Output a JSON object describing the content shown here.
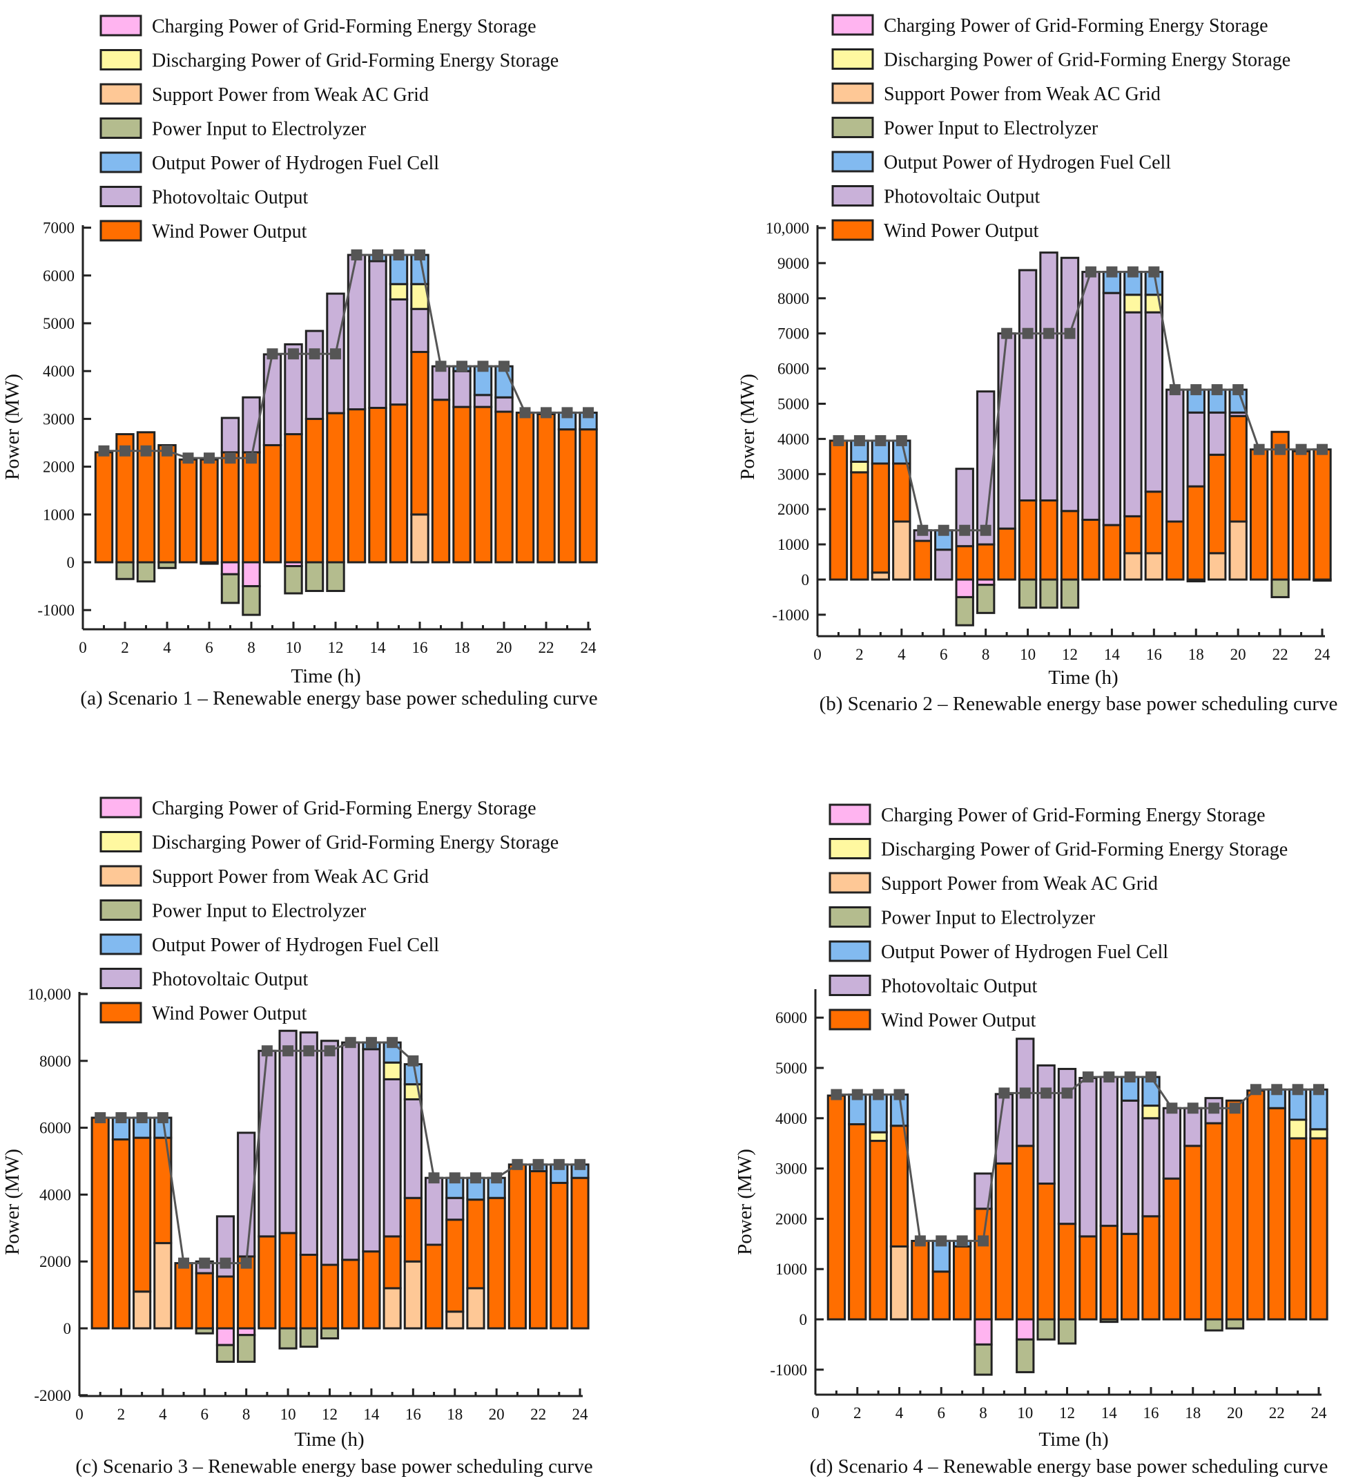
{
  "legend": [
    {
      "key": "charge",
      "label": "Charging Power of Grid-Forming Energy Storage",
      "color": "#FFB4F0"
    },
    {
      "key": "discharge",
      "label": "Discharging Power of Grid-Forming Energy Storage",
      "color": "#FFF8A0"
    },
    {
      "key": "support",
      "label": "Support Power from Weak AC Grid",
      "color": "#FEC896"
    },
    {
      "key": "electrolyzer",
      "label": "Power Input to Electrolyzer",
      "color": "#B4BC8E"
    },
    {
      "key": "fuelcell",
      "label": "Output Power of Hydrogen Fuel Cell",
      "color": "#82BAF0"
    },
    {
      "key": "pv",
      "label": "Photovoltaic Output",
      "color": "#C9B1D9"
    },
    {
      "key": "wind",
      "label": "Wind Power Output",
      "color": "#FF6E00"
    }
  ],
  "line_color": "#555555",
  "chart_data": [
    {
      "type": "bar",
      "stacked": true,
      "title": "(a) Scenario 1 – Renewable energy base power scheduling curve",
      "xlabel": "Time (h)",
      "ylabel": "Power (MW)",
      "xlim": [
        0,
        24
      ],
      "ylim": [
        -1400,
        7000
      ],
      "xticks": [
        "0",
        "2",
        "4",
        "6",
        "8",
        "10",
        "12",
        "14",
        "16",
        "18",
        "20",
        "22",
        "24"
      ],
      "yticks": [
        {
          "v": -1000,
          "label": "-1000"
        },
        {
          "v": 0,
          "label": "0"
        },
        {
          "v": 1000,
          "label": "1000"
        },
        {
          "v": 2000,
          "label": "2000"
        },
        {
          "v": 3000,
          "label": "3000"
        },
        {
          "v": 4000,
          "label": "4000"
        },
        {
          "v": 5000,
          "label": "5000"
        },
        {
          "v": 6000,
          "label": "6000"
        },
        {
          "v": 7000,
          "label": "7000"
        }
      ],
      "hours": [
        1,
        2,
        3,
        4,
        5,
        6,
        7,
        8,
        9,
        10,
        11,
        12,
        13,
        14,
        15,
        16,
        17,
        18,
        19,
        20,
        21,
        22,
        23,
        24
      ],
      "series": {
        "support": [
          0,
          0,
          0,
          0,
          0,
          0,
          0,
          0,
          0,
          0,
          0,
          0,
          0,
          0,
          0,
          1000,
          0,
          0,
          0,
          0,
          0,
          0,
          0,
          0
        ],
        "wind": [
          2300,
          2680,
          2720,
          2450,
          2150,
          2150,
          2300,
          2300,
          2450,
          2680,
          3000,
          3120,
          3200,
          3230,
          3300,
          3400,
          3400,
          3250,
          3250,
          3150,
          3130,
          3100,
          2780,
          2780
        ],
        "pv": [
          0,
          0,
          0,
          0,
          0,
          0,
          720,
          1150,
          1900,
          1880,
          1840,
          2500,
          3230,
          3070,
          2200,
          900,
          700,
          750,
          250,
          300,
          0,
          0,
          0,
          0
        ],
        "discharge": [
          0,
          0,
          0,
          0,
          0,
          0,
          0,
          0,
          0,
          0,
          0,
          0,
          0,
          0,
          320,
          520,
          0,
          0,
          0,
          0,
          0,
          0,
          0,
          0
        ],
        "fuelcell": [
          0,
          0,
          0,
          0,
          0,
          0,
          0,
          0,
          0,
          0,
          0,
          0,
          0,
          130,
          610,
          610,
          0,
          100,
          600,
          650,
          0,
          30,
          350,
          350
        ],
        "charge": [
          0,
          0,
          0,
          0,
          0,
          0,
          -250,
          -500,
          0,
          -80,
          0,
          0,
          0,
          0,
          0,
          0,
          0,
          0,
          0,
          0,
          0,
          0,
          0,
          0
        ],
        "electrolyzer": [
          0,
          -350,
          -400,
          -120,
          0,
          -30,
          -600,
          -600,
          0,
          -570,
          -600,
          -600,
          0,
          0,
          0,
          0,
          0,
          0,
          0,
          0,
          0,
          0,
          0,
          0
        ]
      },
      "load": [
        2330,
        2330,
        2330,
        2330,
        2180,
        2180,
        2180,
        2180,
        4360,
        4360,
        4360,
        4360,
        6430,
        6430,
        6430,
        6430,
        4100,
        4100,
        4100,
        4100,
        3130,
        3130,
        3130,
        3130
      ]
    },
    {
      "type": "bar",
      "stacked": true,
      "title": "(b) Scenario 2 – Renewable energy base power scheduling curve",
      "xlabel": "Time (h)",
      "ylabel": "Power (MW)",
      "xlim": [
        0,
        24
      ],
      "ylim": [
        -1500,
        10000
      ],
      "xticks": [
        "0",
        "2",
        "4",
        "6",
        "8",
        "10",
        "12",
        "14",
        "16",
        "18",
        "20",
        "22",
        "24"
      ],
      "yticks": [
        {
          "v": -1000,
          "label": "-1000"
        },
        {
          "v": 0,
          "label": "0"
        },
        {
          "v": 1000,
          "label": "1000"
        },
        {
          "v": 2000,
          "label": "2000"
        },
        {
          "v": 3000,
          "label": "3000"
        },
        {
          "v": 4000,
          "label": "4000"
        },
        {
          "v": 5000,
          "label": "5000"
        },
        {
          "v": 6000,
          "label": "6000"
        },
        {
          "v": 7000,
          "label": "7000"
        },
        {
          "v": 8000,
          "label": "8000"
        },
        {
          "v": 9000,
          "label": "9000"
        },
        {
          "v": 10000,
          "label": "10,000"
        }
      ],
      "hours": [
        1,
        2,
        3,
        4,
        5,
        6,
        7,
        8,
        9,
        10,
        11,
        12,
        13,
        14,
        15,
        16,
        17,
        18,
        19,
        20,
        21,
        22,
        23,
        24
      ],
      "series": {
        "support": [
          0,
          0,
          200,
          1650,
          0,
          0,
          0,
          0,
          0,
          0,
          0,
          0,
          0,
          0,
          750,
          750,
          0,
          0,
          750,
          1650,
          0,
          0,
          0,
          0
        ],
        "wind": [
          3950,
          3050,
          3100,
          1650,
          1100,
          0,
          950,
          1000,
          1450,
          2250,
          2250,
          1950,
          1700,
          1550,
          1050,
          1750,
          1650,
          2650,
          2800,
          3000,
          3700,
          4200,
          3650,
          3700
        ],
        "pv": [
          0,
          0,
          0,
          0,
          300,
          850,
          2200,
          4350,
          5550,
          6550,
          7050,
          7200,
          7050,
          6600,
          5800,
          5100,
          3750,
          2100,
          1200,
          100,
          0,
          0,
          0,
          0
        ],
        "discharge": [
          0,
          300,
          0,
          0,
          0,
          0,
          0,
          0,
          0,
          0,
          0,
          0,
          0,
          0,
          500,
          500,
          0,
          0,
          0,
          0,
          0,
          0,
          0,
          0
        ],
        "fuelcell": [
          0,
          600,
          650,
          650,
          0,
          550,
          0,
          0,
          0,
          0,
          0,
          0,
          0,
          600,
          650,
          650,
          0,
          650,
          650,
          650,
          0,
          0,
          0,
          0
        ],
        "charge": [
          0,
          0,
          0,
          0,
          0,
          0,
          -500,
          -150,
          0,
          0,
          0,
          0,
          0,
          0,
          0,
          0,
          0,
          0,
          0,
          0,
          0,
          0,
          0,
          0
        ],
        "electrolyzer": [
          0,
          0,
          0,
          0,
          0,
          0,
          -800,
          -800,
          0,
          -800,
          -800,
          -800,
          0,
          0,
          0,
          0,
          0,
          -50,
          0,
          0,
          0,
          -500,
          0,
          -30
        ]
      },
      "load": [
        3950,
        3950,
        3950,
        3950,
        1400,
        1400,
        1400,
        1400,
        7000,
        7000,
        7000,
        7000,
        8750,
        8750,
        8750,
        8750,
        5400,
        5400,
        5400,
        5400,
        3700,
        3700,
        3700,
        3700
      ]
    },
    {
      "type": "bar",
      "stacked": true,
      "title": "(c) Scenario 3 – Renewable energy base power scheduling curve",
      "xlabel": "Time (h)",
      "ylabel": "Power (MW)",
      "xlim": [
        0,
        24
      ],
      "ylim": [
        -2000,
        10000
      ],
      "xticks": [
        "0",
        "2",
        "4",
        "6",
        "8",
        "10",
        "12",
        "14",
        "16",
        "18",
        "20",
        "22",
        "24"
      ],
      "yticks": [
        {
          "v": -2000,
          "label": "-2000"
        },
        {
          "v": 0,
          "label": "0"
        },
        {
          "v": 2000,
          "label": "2000"
        },
        {
          "v": 4000,
          "label": "4000"
        },
        {
          "v": 6000,
          "label": "6000"
        },
        {
          "v": 8000,
          "label": "8000"
        },
        {
          "v": 10000,
          "label": "10,000"
        }
      ],
      "hours": [
        1,
        2,
        3,
        4,
        5,
        6,
        7,
        8,
        9,
        10,
        11,
        12,
        13,
        14,
        15,
        16,
        17,
        18,
        19,
        20,
        21,
        22,
        23,
        24
      ],
      "series": {
        "support": [
          0,
          0,
          1100,
          2550,
          0,
          0,
          0,
          0,
          0,
          0,
          0,
          0,
          0,
          0,
          1200,
          2000,
          0,
          500,
          1200,
          0,
          0,
          0,
          0,
          0
        ],
        "wind": [
          6300,
          5650,
          4600,
          3150,
          1950,
          1650,
          1550,
          2150,
          2750,
          2850,
          2200,
          1900,
          2050,
          2300,
          1550,
          1900,
          2500,
          2750,
          2650,
          3900,
          4900,
          4700,
          4350,
          4500
        ],
        "pv": [
          0,
          0,
          0,
          0,
          0,
          350,
          1800,
          3700,
          5550,
          6050,
          6650,
          6700,
          6500,
          6050,
          4700,
          2950,
          2000,
          650,
          0,
          0,
          0,
          0,
          0,
          0
        ],
        "discharge": [
          0,
          0,
          0,
          0,
          0,
          0,
          0,
          0,
          0,
          0,
          0,
          0,
          0,
          0,
          500,
          450,
          0,
          0,
          0,
          0,
          0,
          0,
          0,
          0
        ],
        "fuelcell": [
          0,
          650,
          600,
          600,
          0,
          0,
          0,
          0,
          0,
          0,
          0,
          0,
          0,
          200,
          600,
          600,
          0,
          600,
          650,
          600,
          0,
          200,
          550,
          400
        ],
        "charge": [
          0,
          0,
          0,
          0,
          0,
          0,
          -500,
          -200,
          0,
          0,
          0,
          0,
          0,
          0,
          0,
          0,
          0,
          0,
          0,
          0,
          0,
          0,
          0,
          0
        ],
        "electrolyzer": [
          0,
          0,
          0,
          0,
          0,
          -150,
          -500,
          -800,
          0,
          -600,
          -550,
          -300,
          0,
          0,
          0,
          0,
          0,
          0,
          0,
          0,
          0,
          0,
          0,
          0
        ]
      },
      "load": [
        6300,
        6300,
        6300,
        6300,
        1950,
        1950,
        1950,
        1950,
        8300,
        8300,
        8300,
        8300,
        8550,
        8550,
        8550,
        8000,
        4500,
        4500,
        4500,
        4500,
        4900,
        4900,
        4900,
        4900
      ]
    },
    {
      "type": "bar",
      "stacked": true,
      "title": "(d) Scenario 4 – Renewable energy base power scheduling curve",
      "xlabel": "Time (h)",
      "ylabel": "Power (MW)",
      "xlim": [
        0,
        24
      ],
      "ylim": [
        -1500,
        6500
      ],
      "xticks": [
        "0",
        "2",
        "4",
        "6",
        "8",
        "10",
        "12",
        "14",
        "16",
        "18",
        "20",
        "22",
        "24"
      ],
      "yticks": [
        {
          "v": -1000,
          "label": "-1000"
        },
        {
          "v": 0,
          "label": "0"
        },
        {
          "v": 1000,
          "label": "1000"
        },
        {
          "v": 2000,
          "label": "2000"
        },
        {
          "v": 3000,
          "label": "3000"
        },
        {
          "v": 4000,
          "label": "4000"
        },
        {
          "v": 5000,
          "label": "5000"
        },
        {
          "v": 6000,
          "label": "6000"
        }
      ],
      "hours": [
        1,
        2,
        3,
        4,
        5,
        6,
        7,
        8,
        9,
        10,
        11,
        12,
        13,
        14,
        15,
        16,
        17,
        18,
        19,
        20,
        21,
        22,
        23,
        24
      ],
      "series": {
        "support": [
          0,
          0,
          0,
          1450,
          0,
          0,
          0,
          0,
          0,
          0,
          0,
          0,
          0,
          0,
          0,
          0,
          0,
          0,
          0,
          0,
          0,
          0,
          0,
          0
        ],
        "wind": [
          4450,
          3880,
          3550,
          2400,
          1560,
          950,
          1450,
          2200,
          3100,
          3450,
          2700,
          1900,
          1650,
          1860,
          1700,
          2050,
          2800,
          3450,
          3900,
          4350,
          4550,
          4200,
          3600,
          3600
        ],
        "pv": [
          0,
          0,
          0,
          0,
          0,
          0,
          0,
          700,
          1380,
          2130,
          2350,
          3080,
          3150,
          2960,
          2650,
          1950,
          1400,
          750,
          500,
          0,
          0,
          0,
          0,
          0
        ],
        "discharge": [
          0,
          0,
          170,
          0,
          0,
          0,
          0,
          0,
          0,
          0,
          0,
          0,
          0,
          0,
          0,
          250,
          0,
          0,
          0,
          0,
          0,
          0,
          370,
          180
        ],
        "fuelcell": [
          0,
          590,
          750,
          620,
          0,
          610,
          110,
          0,
          0,
          0,
          0,
          0,
          0,
          0,
          470,
          570,
          0,
          0,
          0,
          0,
          0,
          370,
          600,
          790
        ],
        "charge": [
          0,
          0,
          0,
          0,
          0,
          0,
          0,
          -500,
          0,
          -400,
          0,
          0,
          0,
          0,
          0,
          0,
          0,
          0,
          0,
          0,
          0,
          0,
          0,
          0
        ],
        "electrolyzer": [
          0,
          0,
          0,
          0,
          0,
          0,
          0,
          -600,
          0,
          -650,
          -400,
          -480,
          0,
          -50,
          0,
          0,
          0,
          0,
          -220,
          -180,
          0,
          0,
          0,
          0
        ]
      },
      "load": [
        4470,
        4470,
        4470,
        4470,
        1560,
        1560,
        1560,
        1560,
        4500,
        4500,
        4500,
        4500,
        4820,
        4820,
        4820,
        4820,
        4200,
        4200,
        4200,
        4200,
        4570,
        4570,
        4570,
        4570
      ]
    }
  ]
}
